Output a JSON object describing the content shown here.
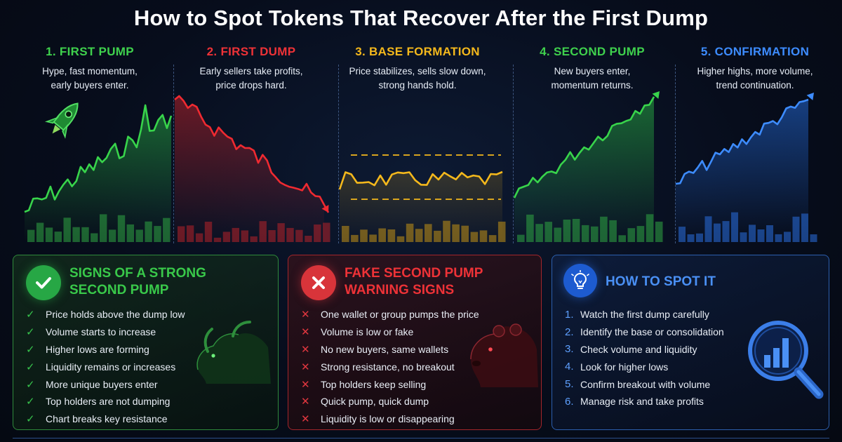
{
  "title": "How to Spot Tokens That Recover After the First Dump",
  "stages": [
    {
      "heading": "1. FIRST PUMP",
      "desc_line1": "Hype, fast momentum,",
      "desc_line2": "early buyers enter.",
      "color": "#3fd14d"
    },
    {
      "heading": "2. FIRST DUMP",
      "desc_line1": "Early sellers take profits,",
      "desc_line2": "price drops hard.",
      "color": "#ee3237"
    },
    {
      "heading": "3. BASE FORMATION",
      "desc_line1": "Price stabilizes, sells slow down,",
      "desc_line2": "strong hands hold.",
      "color": "#f4b81c"
    },
    {
      "heading": "4. SECOND PUMP",
      "desc_line1": "New buyers enter,",
      "desc_line2": "momentum returns.",
      "color": "#3fd14d"
    },
    {
      "heading": "5. CONFIRMATION",
      "desc_line1": "Higher highs, more volume,",
      "desc_line2": "trend continuation.",
      "color": "#3d8cff"
    }
  ],
  "strong": {
    "title_line1": "SIGNS OF A STRONG",
    "title_line2": "SECOND PUMP",
    "color": "#39c94a",
    "items": [
      "Price holds above the dump low",
      "Volume starts to increase",
      "Higher lows are forming",
      "Liquidity remains or increases",
      "More unique buyers enter",
      "Top holders are not dumping",
      "Chart breaks key resistance"
    ]
  },
  "fake": {
    "title_line1": "FAKE SECOND PUMP",
    "title_line2": "WARNING SIGNS",
    "color": "#ee3237",
    "items": [
      "One wallet or group pumps the price",
      "Volume is low or fake",
      "No new buyers, same wallets",
      "Strong resistance, no breakout",
      "Top holders keep selling",
      "Quick pump, quick dump",
      "Liquidity is low or disappearing"
    ]
  },
  "spot": {
    "title": "HOW TO SPOT IT",
    "color": "#4a90f5",
    "items": [
      {
        "n": "1.",
        "text": "Watch the first dump carefully"
      },
      {
        "n": "2.",
        "text": "Identify the base or consolidation"
      },
      {
        "n": "3.",
        "text": "Check volume and liquidity"
      },
      {
        "n": "4.",
        "text": "Look for higher lows"
      },
      {
        "n": "5.",
        "text": "Confirm breakout with volume"
      },
      {
        "n": "6.",
        "text": "Manage risk and take profits"
      }
    ]
  },
  "icons": {
    "stage1": "rocket-icon",
    "strong_badge": "check-icon",
    "fake_badge": "x-icon",
    "spot_badge": "lightbulb-icon",
    "strong_art": "bull-icon",
    "fake_art": "bear-icon",
    "spot_art": "magnifier-chart-icon"
  }
}
